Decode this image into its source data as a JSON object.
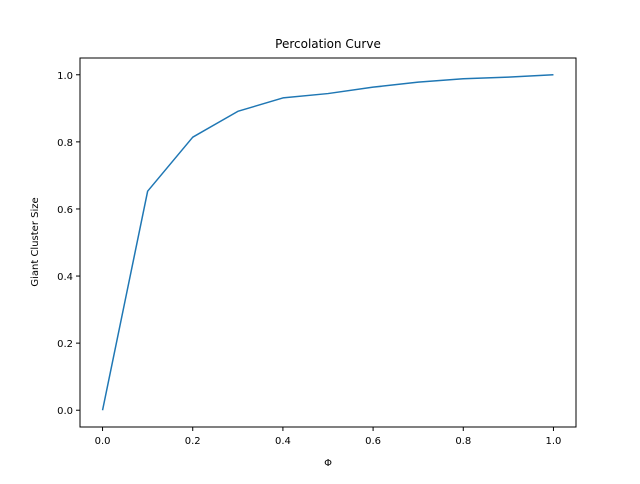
{
  "chart_data": {
    "type": "line",
    "title": "Percolation Curve",
    "xlabel": "Φ",
    "ylabel": "Giant Cluster Size",
    "xlim": [
      -0.05,
      1.05
    ],
    "ylim": [
      -0.05,
      1.05
    ],
    "xticks": [
      0.0,
      0.2,
      0.4,
      0.6,
      0.8,
      1.0
    ],
    "xtick_labels": [
      "0.0",
      "0.2",
      "0.4",
      "0.6",
      "0.8",
      "1.0"
    ],
    "yticks": [
      0.0,
      0.2,
      0.4,
      0.6,
      0.8,
      1.0
    ],
    "ytick_labels": [
      "0.0",
      "0.2",
      "0.4",
      "0.6",
      "0.8",
      "1.0"
    ],
    "grid": false,
    "series": [
      {
        "color": "#1f77b4",
        "x": [
          0.0,
          0.1,
          0.2,
          0.3,
          0.4,
          0.5,
          0.6,
          0.7,
          0.8,
          0.9,
          1.0
        ],
        "y": [
          0.0,
          0.653,
          0.814,
          0.891,
          0.931,
          0.944,
          0.963,
          0.978,
          0.988,
          0.993,
          1.0
        ]
      }
    ]
  }
}
